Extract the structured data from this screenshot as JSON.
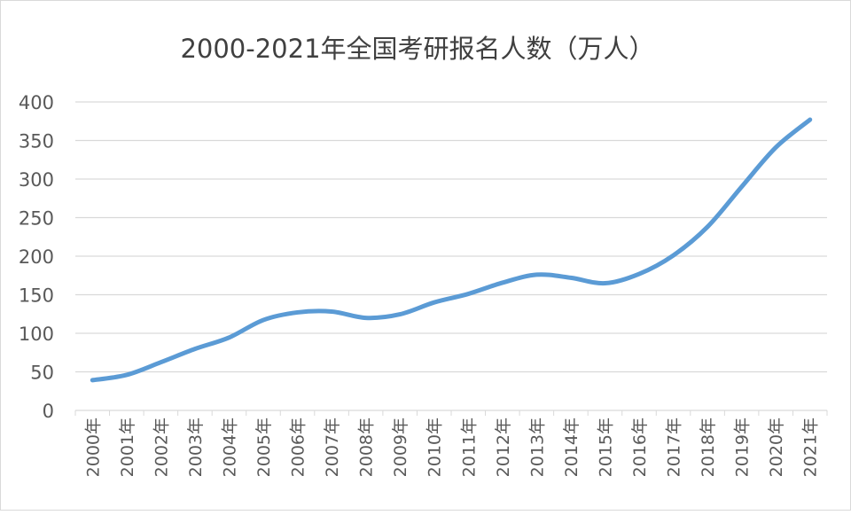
{
  "chart_data": {
    "type": "line",
    "title": "2000-2021年全国考研报名人数（万人）",
    "xlabel": "",
    "ylabel": "",
    "categories": [
      "2000年",
      "2001年",
      "2002年",
      "2003年",
      "2004年",
      "2005年",
      "2006年",
      "2007年",
      "2008年",
      "2009年",
      "2010年",
      "2011年",
      "2012年",
      "2013年",
      "2014年",
      "2015年",
      "2016年",
      "2017年",
      "2018年",
      "2019年",
      "2020年",
      "2021年"
    ],
    "series": [
      {
        "values": [
          39.2,
          46,
          62.4,
          79.7,
          94.5,
          117.2,
          127.1,
          128.2,
          120,
          124.6,
          140,
          151.1,
          165.6,
          176,
          172,
          164.9,
          177,
          201,
          238,
          290,
          341,
          377
        ]
      }
    ],
    "ylim": [
      0,
      400
    ],
    "yticks": [
      "0",
      "50",
      "100",
      "150",
      "200",
      "250",
      "300",
      "350",
      "400"
    ],
    "grid": true,
    "legend": "none",
    "line_color": "#5b9bd5",
    "grid_color": "#d9d9d9"
  }
}
